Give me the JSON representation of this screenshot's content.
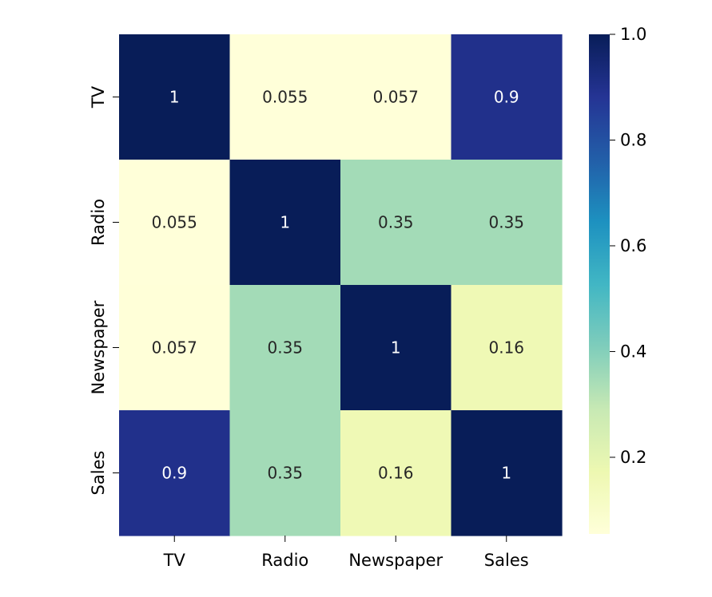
{
  "chart_data": {
    "type": "heatmap",
    "title": "",
    "xlabel": "",
    "ylabel": "",
    "x_categories": [
      "TV",
      "Radio",
      "Newspaper",
      "Sales"
    ],
    "y_categories": [
      "TV",
      "Radio",
      "Newspaper",
      "Sales"
    ],
    "values": [
      [
        1,
        0.055,
        0.057,
        0.9
      ],
      [
        0.055,
        1,
        0.35,
        0.35
      ],
      [
        0.057,
        0.35,
        1,
        0.16
      ],
      [
        0.9,
        0.35,
        0.16,
        1
      ]
    ],
    "annotations": [
      [
        "1",
        "0.055",
        "0.057",
        "0.9"
      ],
      [
        "0.055",
        "1",
        "0.35",
        "0.35"
      ],
      [
        "0.057",
        "0.35",
        "1",
        "0.16"
      ],
      [
        "0.9",
        "0.35",
        "0.16",
        "1"
      ]
    ],
    "colormap": "YlGnBu",
    "vmin": 0.055,
    "vmax": 1.0,
    "colorbar": {
      "ticks": [
        0.2,
        0.4,
        0.6,
        0.8,
        1.0
      ],
      "tick_labels": [
        "0.2",
        "0.4",
        "0.6",
        "0.8",
        "1.0"
      ],
      "position": "right"
    },
    "grid": false
  }
}
